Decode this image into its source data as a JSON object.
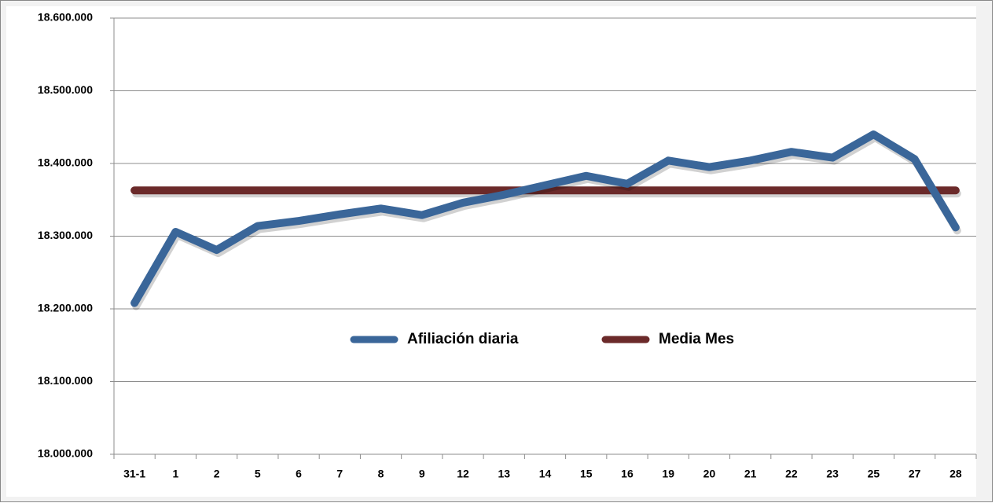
{
  "chart_data": {
    "type": "line",
    "categories": [
      "31-1",
      "1",
      "2",
      "5",
      "6",
      "7",
      "8",
      "9",
      "12",
      "13",
      "14",
      "15",
      "16",
      "19",
      "20",
      "21",
      "22",
      "23",
      "25",
      "27",
      "28"
    ],
    "series": [
      {
        "name": "Afiliación diaria",
        "color": "#3a6699",
        "values": [
          18208000,
          18306000,
          18281000,
          18314000,
          18321000,
          18330000,
          18338000,
          18329000,
          18346000,
          18357000,
          18370000,
          18383000,
          18372000,
          18404000,
          18395000,
          18404000,
          18416000,
          18408000,
          18440000,
          18406000,
          18312000
        ]
      },
      {
        "name": "Media Mes",
        "color": "#6b2a2a",
        "values": [
          18363000,
          18363000,
          18363000,
          18363000,
          18363000,
          18363000,
          18363000,
          18363000,
          18363000,
          18363000,
          18363000,
          18363000,
          18363000,
          18363000,
          18363000,
          18363000,
          18363000,
          18363000,
          18363000,
          18363000,
          18363000
        ]
      }
    ],
    "ylim": [
      18000000,
      18600000
    ],
    "yticks": [
      {
        "value": 18000000,
        "label": "18.000.000"
      },
      {
        "value": 18100000,
        "label": "18.100.000"
      },
      {
        "value": 18200000,
        "label": "18.200.000"
      },
      {
        "value": 18300000,
        "label": "18.300.000"
      },
      {
        "value": 18400000,
        "label": "18.400.000"
      },
      {
        "value": 18500000,
        "label": "18.500.000"
      },
      {
        "value": 18600000,
        "label": "18.600.000"
      }
    ],
    "grid": true,
    "legend": "center"
  }
}
